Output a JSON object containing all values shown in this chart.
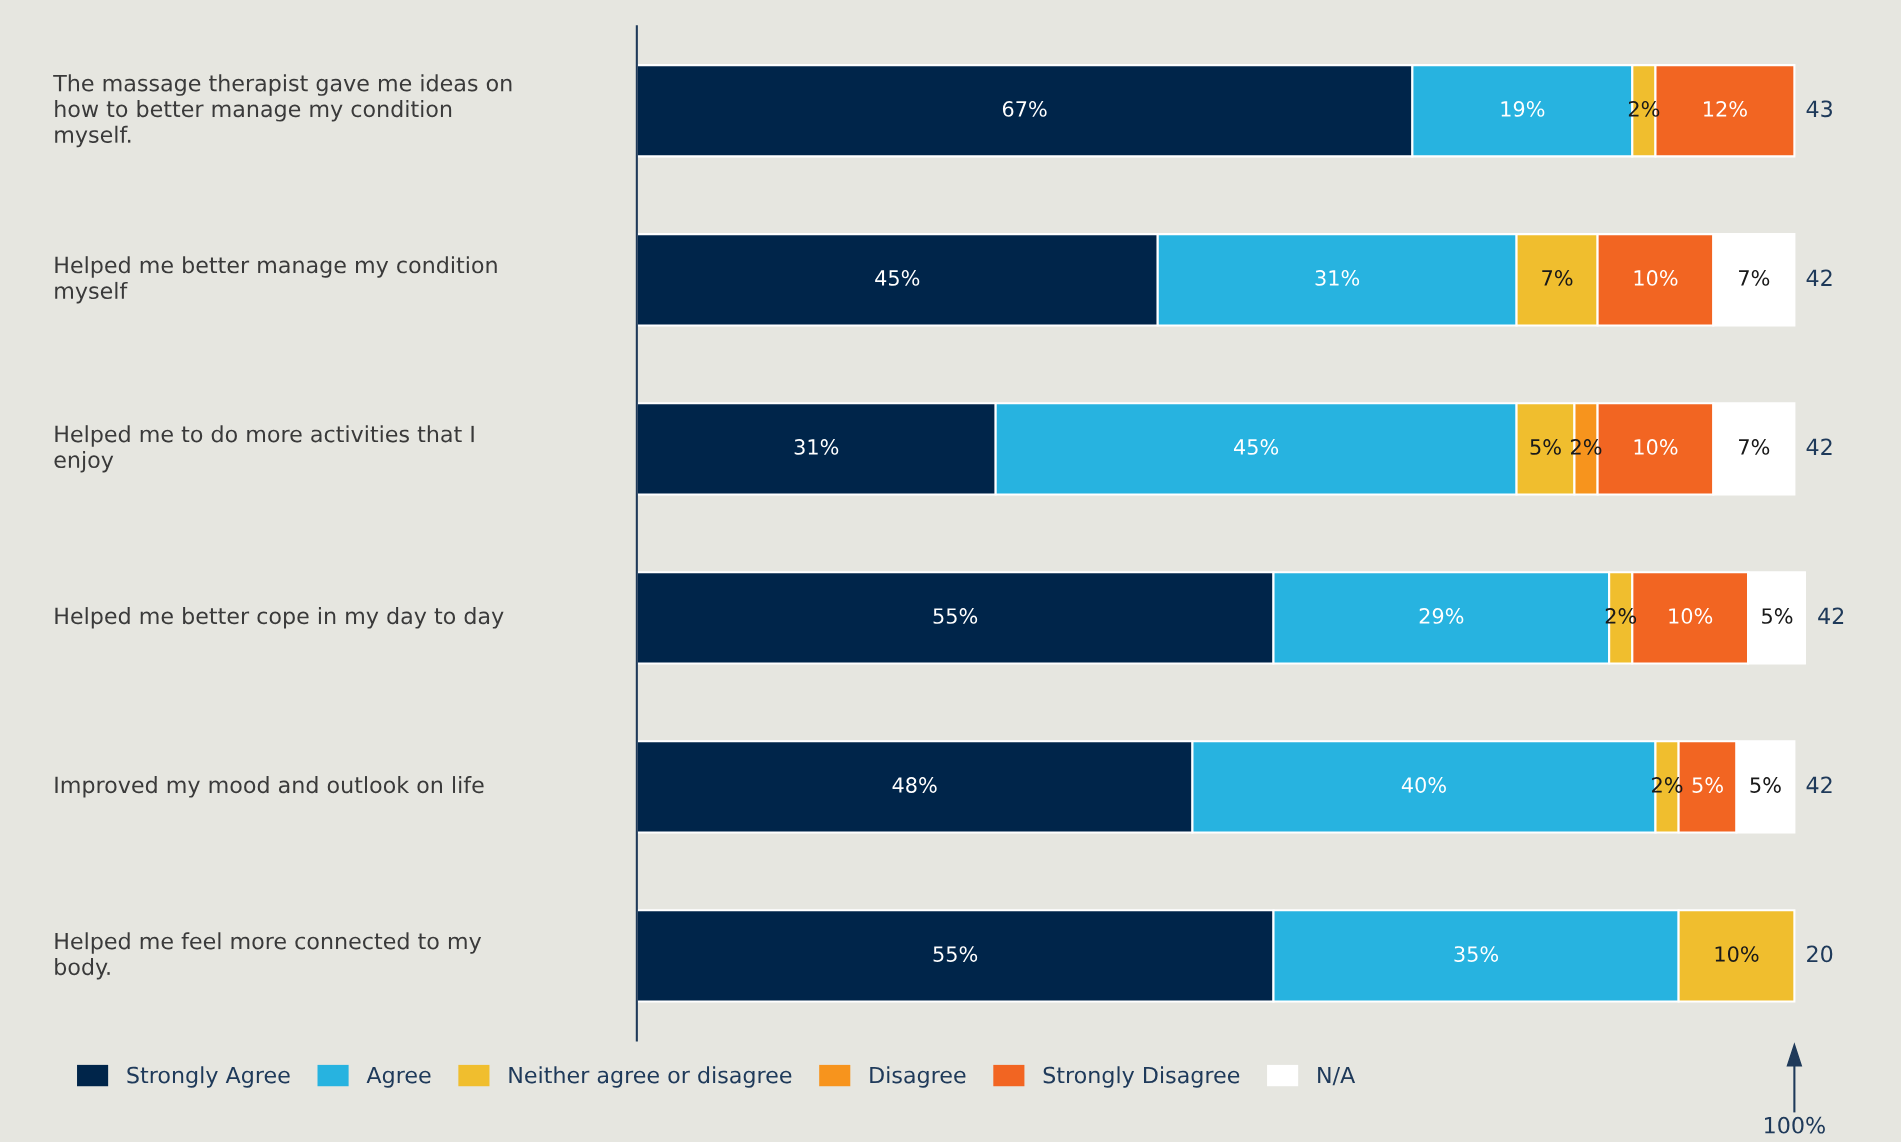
{
  "chart_data": {
    "type": "bar",
    "orientation": "horizontal",
    "stacked": true,
    "categories": [
      "The massage therapist gave me ideas on how to better manage my condition myself.",
      "Helped me better manage my condition myself",
      "Helped me to do more activities that I enjoy",
      "Helped me better cope in my day to day",
      "Improved my mood and outlook on life",
      "Helped me feel more connected to my body."
    ],
    "series": [
      {
        "name": "Strongly Agree",
        "color": "#00254a",
        "values": [
          67,
          45,
          31,
          55,
          48,
          55
        ],
        "value_labels": [
          "67%",
          "45%",
          "31%",
          "55%",
          "48%",
          "55%"
        ]
      },
      {
        "name": "Agree",
        "color": "#27b3e0",
        "values": [
          19,
          31,
          45,
          29,
          40,
          35
        ],
        "value_labels": [
          "19%",
          "31%",
          "45%",
          "29%",
          "40%",
          "35%"
        ]
      },
      {
        "name": "Neither agree or disagree",
        "color": "#f0be2e",
        "values": [
          2,
          7,
          5,
          2,
          2,
          10
        ],
        "value_labels": [
          "2%",
          "7%",
          "5%",
          "2%",
          "2%",
          "10%"
        ]
      },
      {
        "name": "Disagree",
        "color": "#f7941d",
        "values": [
          null,
          null,
          2,
          null,
          null,
          null
        ],
        "value_labels": [
          null,
          null,
          "2%",
          null,
          null,
          null
        ]
      },
      {
        "name": "Strongly Disagree",
        "color": "#f26522",
        "values": [
          12,
          10,
          10,
          10,
          5,
          null
        ],
        "value_labels": [
          "12%",
          "10%",
          "10%",
          "10%",
          "5%",
          null
        ]
      },
      {
        "name": "N/A",
        "color": "#ffffff",
        "values": [
          null,
          7,
          7,
          5,
          5,
          null
        ],
        "value_labels": [
          null,
          "7%",
          "7%",
          "5%",
          "5%",
          null
        ]
      }
    ],
    "annotations": [
      "43",
      "42",
      "42",
      "42",
      "42",
      "20",
      {
        "text": "100%",
        "x": 100
      }
    ],
    "legend": "bottom"
  }
}
